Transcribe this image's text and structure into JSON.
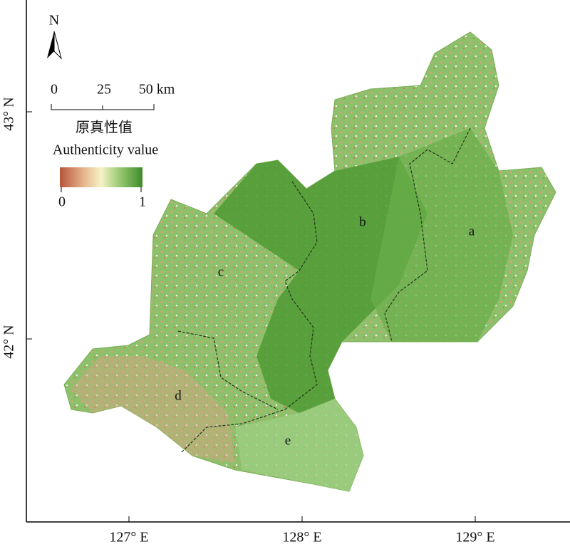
{
  "map": {
    "north": "N",
    "scale_labels": [
      "0",
      "25",
      "50 km"
    ],
    "legend": {
      "title_cn": "原真性值",
      "title_en": "Authenticity value",
      "min": "0",
      "max": "1"
    },
    "y_labels": [
      "43° N",
      "42° N"
    ],
    "x_labels": [
      "127° E",
      "128° E",
      "129° E"
    ],
    "regions": [
      "a",
      "b",
      "c",
      "d",
      "e"
    ]
  }
}
